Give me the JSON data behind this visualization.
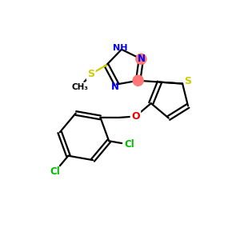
{
  "bg_color": "#ffffff",
  "atom_colors": {
    "S": "#cccc00",
    "N": "#0000ee",
    "O": "#ee0000",
    "C": "#000000",
    "Cl": "#00bb00"
  },
  "bond_color": "#000000",
  "highlight_color": "#ff7777",
  "bond_lw": 1.6,
  "font_size": 8.5
}
